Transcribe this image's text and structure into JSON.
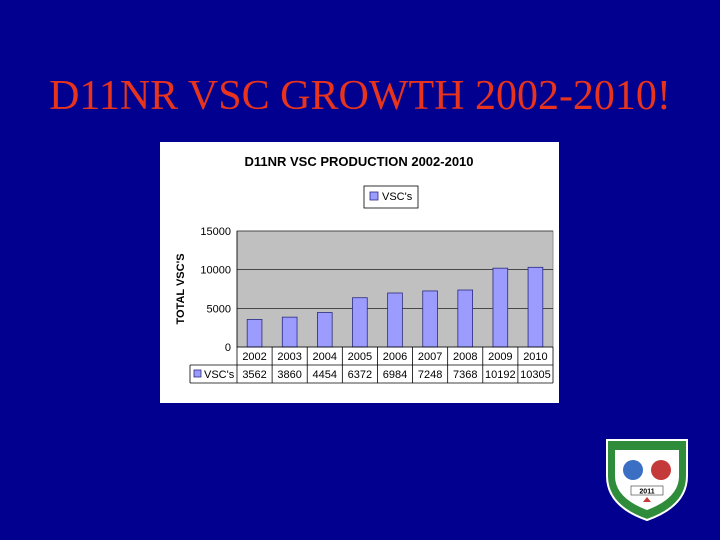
{
  "slide": {
    "title": "D11NR VSC GROWTH 2002-2010!"
  },
  "badge": {
    "text": "2011"
  },
  "colors": {
    "background": "#02018f",
    "title": "#e8341c",
    "bar_fill": "#9c9cff",
    "bar_stroke": "#2a2a80",
    "plot_area": "#c0c0c0",
    "badge_green": "#2f8c3a"
  },
  "chart_data": {
    "type": "bar",
    "title": "D11NR VSC PRODUCTION 2002-2010",
    "ylabel": "TOTAL VSC'S",
    "xlabel": "",
    "categories": [
      "2002",
      "2003",
      "2004",
      "2005",
      "2006",
      "2007",
      "2008",
      "2009",
      "2010"
    ],
    "series": [
      {
        "name": "VSC's",
        "values": [
          3562,
          3860,
          4454,
          6372,
          6984,
          7248,
          7368,
          10192,
          10305
        ]
      }
    ],
    "ylim": [
      0,
      15000
    ],
    "yticks": [
      "15000",
      "10000",
      "5000",
      "0"
    ],
    "table_values": [
      "3562",
      "3860",
      "4454",
      "6372",
      "6984",
      "7248",
      "7368",
      "10192",
      "10305"
    ],
    "legend": "top",
    "grid": true,
    "data_table": true
  }
}
